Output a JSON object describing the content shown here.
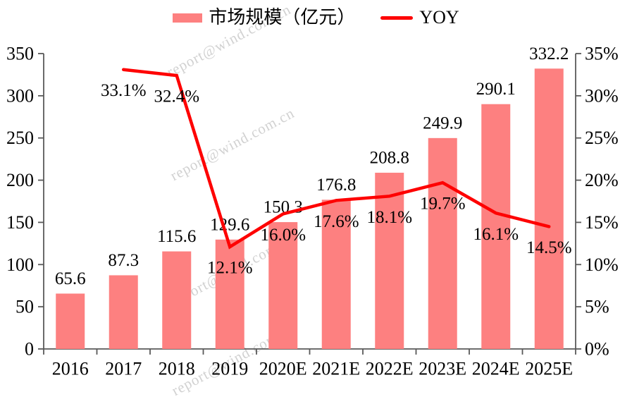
{
  "watermark": {
    "text": "report@wind.com.cn"
  },
  "legend": {
    "bar": {
      "label": "市场规模（亿元）"
    },
    "line": {
      "label": "YOY"
    }
  },
  "colors": {
    "bar": "#FD8080",
    "line": "#FE0000",
    "axis": "#595959",
    "text": "#000000"
  },
  "chart_data": {
    "type": "bar+line",
    "title": "",
    "categories": [
      "2016",
      "2017",
      "2018",
      "2019",
      "2020E",
      "2021E",
      "2022E",
      "2023E",
      "2024E",
      "2025E"
    ],
    "series": [
      {
        "name": "市场规模（亿元）",
        "type": "bar",
        "axis": "left",
        "values": [
          65.6,
          87.3,
          115.6,
          129.6,
          150.3,
          176.8,
          208.8,
          249.9,
          290.1,
          332.2
        ],
        "labels": [
          "65.6",
          "87.3",
          "115.6",
          "129.6",
          "150.3",
          "176.8",
          "208.8",
          "249.9",
          "290.1",
          "332.2"
        ]
      },
      {
        "name": "YOY",
        "type": "line",
        "axis": "right",
        "values": [
          null,
          33.1,
          32.4,
          12.1,
          16.0,
          17.6,
          18.1,
          19.7,
          16.1,
          14.5
        ],
        "labels": [
          "",
          "33.1%",
          "32.4%",
          "12.1%",
          "16.0%",
          "17.6%",
          "18.1%",
          "19.7%",
          "16.1%",
          "14.5%"
        ]
      }
    ],
    "left_axis": {
      "min": 0,
      "max": 350,
      "step": 50,
      "tick_labels": [
        "0",
        "50",
        "100",
        "150",
        "200",
        "250",
        "300",
        "350"
      ]
    },
    "right_axis": {
      "min": 0,
      "max": 35,
      "step": 5,
      "tick_labels": [
        "0%",
        "5%",
        "10%",
        "15%",
        "20%",
        "25%",
        "30%",
        "35%"
      ]
    },
    "grid": false,
    "legend_position": "top-center"
  }
}
